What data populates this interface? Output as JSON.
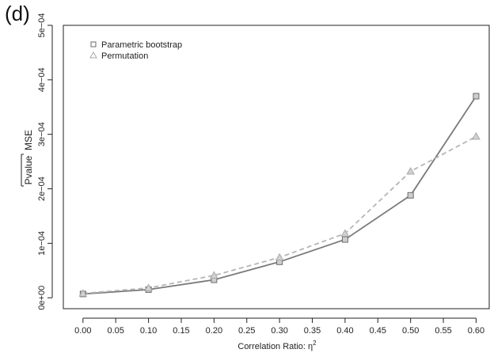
{
  "panel_label": "(d)",
  "chart_data": {
    "type": "line",
    "title": "",
    "xlabel": "Correlation Ratio: η²",
    "ylabel_main": "Pvalue",
    "ylabel_suffix": "MSE",
    "x": [
      0.0,
      0.1,
      0.2,
      0.3,
      0.4,
      0.5,
      0.6
    ],
    "xlim": [
      -0.03,
      0.62
    ],
    "ylim": [
      -2e-05,
      0.0005
    ],
    "x_ticks": [
      "0.00",
      "0.05",
      "0.10",
      "0.15",
      "0.20",
      "0.25",
      "0.30",
      "0.35",
      "0.40",
      "0.45",
      "0.50",
      "0.55",
      "0.60"
    ],
    "x_tick_values": [
      0.0,
      0.05,
      0.1,
      0.15,
      0.2,
      0.25,
      0.3,
      0.35,
      0.4,
      0.45,
      0.5,
      0.55,
      0.6
    ],
    "y_ticks": [
      "0e+00",
      "1e−04",
      "2e−04",
      "3e−04",
      "4e−04",
      "5e−04"
    ],
    "y_tick_values": [
      0,
      0.0001,
      0.0002,
      0.0003,
      0.0004,
      0.0005
    ],
    "grid": false,
    "legend_position": "top-left",
    "series": [
      {
        "name": "Parametric bootstrap",
        "marker": "square",
        "line": "solid",
        "color": "#7a7a7a",
        "values": [
          7e-06,
          1.5e-05,
          3.3e-05,
          6.6e-05,
          0.000107,
          0.000188,
          0.00037
        ]
      },
      {
        "name": "Permutation",
        "marker": "triangle",
        "line": "dashed",
        "color": "#b5b5b5",
        "values": [
          8e-06,
          1.8e-05,
          4.1e-05,
          7.4e-05,
          0.000118,
          0.000232,
          0.000296
        ]
      }
    ]
  }
}
